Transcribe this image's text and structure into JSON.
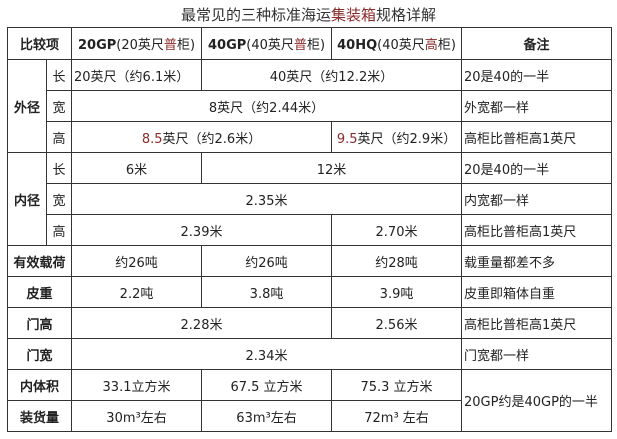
{
  "title": {
    "pre": "最常见的三种标准海运",
    "red": "集装箱",
    "post": "规格详解"
  },
  "header": {
    "item": "比较项",
    "c20": {
      "bold": "20GP",
      "pre": "(20英尺",
      "red": "普",
      "post": "柜)"
    },
    "c40": {
      "bold": "40GP",
      "pre": "(40英尺",
      "red": "普",
      "post": "柜)"
    },
    "c40hq": {
      "bold": "40HQ",
      "pre": "(40英尺",
      "red": "高",
      "post": "柜)"
    },
    "note": "备注"
  },
  "outer": {
    "label": "外径",
    "length": {
      "label": "长",
      "v20": "20英尺（约6.1米）",
      "v40": "40英尺（约12.2米）",
      "note": "20是40的一半"
    },
    "width": {
      "label": "宽",
      "v": "8英尺（约2.44米）",
      "note": "外宽都一样"
    },
    "height": {
      "label": "高",
      "v20n": "8.5",
      "v20s": "英尺（约2.6米）",
      "vhqn": "9.5",
      "vhqs": "英尺（约2.9米）",
      "note": "高柜比普柜高1英尺"
    }
  },
  "inner": {
    "label": "内径",
    "length": {
      "label": "长",
      "v20": "6米",
      "v40": "12米",
      "note": "20是40的一半"
    },
    "width": {
      "label": "宽",
      "v": "2.35米",
      "note": "内宽都一样"
    },
    "height": {
      "label": "高",
      "v": "2.39米",
      "vhq": "2.70米",
      "note": "高柜比普柜高1英尺"
    }
  },
  "payload": {
    "label": "有效载荷",
    "v20": "约26吨",
    "v40": "约26吨",
    "vhq": "约28吨",
    "note": "载重量都差不多"
  },
  "tare": {
    "label": "皮重",
    "v20": "2.2吨",
    "v40": "3.8吨",
    "vhq": "3.9吨",
    "note": "皮重即箱体自重"
  },
  "door_height": {
    "label": "门高",
    "v": "2.28米",
    "vhq": "2.56米",
    "note": "高柜比普柜高1英尺"
  },
  "door_width": {
    "label": "门宽",
    "v": "2.34米",
    "note": "门宽都一样"
  },
  "volume": {
    "label": "内体积",
    "v20": "33.1立方米",
    "v40": "67.5 立方米",
    "vhq": "75.3 立方米"
  },
  "capacity": {
    "label": "装货量",
    "v20": "30m³左右",
    "v40": "63m³左右",
    "vhq": "72m³ 左右"
  },
  "volume_note": "20GP约是40GP的一半"
}
